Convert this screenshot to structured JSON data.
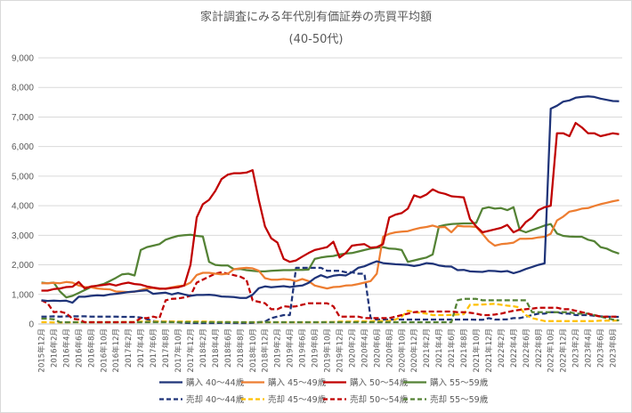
{
  "chart_data": {
    "type": "line",
    "title": "家計調査にみる年代別有価証券の売買平均額",
    "subtitle": "(40-50代)",
    "xlabel": "",
    "ylabel": "",
    "ylim": [
      0,
      9000
    ],
    "yticks": [
      "0",
      "1,000",
      "2,000",
      "3,000",
      "4,000",
      "5,000",
      "6,000",
      "7,000",
      "8,000",
      "9,000"
    ],
    "ytick_values": [
      0,
      1000,
      2000,
      3000,
      4000,
      5000,
      6000,
      7000,
      8000,
      9000
    ],
    "grid": true,
    "legend_position": "bottom",
    "x": [
      "2015年12月",
      "2016年1月",
      "2016年2月",
      "2016年3月",
      "2016年4月",
      "2016年5月",
      "2016年6月",
      "2016年7月",
      "2016年8月",
      "2016年9月",
      "2016年10月",
      "2016年11月",
      "2016年12月",
      "2017年1月",
      "2017年2月",
      "2017年3月",
      "2017年4月",
      "2017年5月",
      "2017年6月",
      "2017年7月",
      "2017年8月",
      "2017年9月",
      "2017年10月",
      "2017年11月",
      "2017年12月",
      "2018年1月",
      "2018年2月",
      "2018年3月",
      "2018年4月",
      "2018年5月",
      "2018年6月",
      "2018年7月",
      "2018年8月",
      "2018年9月",
      "2018年10月",
      "2018年11月",
      "2018年12月",
      "2019年1月",
      "2019年2月",
      "2019年3月",
      "2019年4月",
      "2019年5月",
      "2019年6月",
      "2019年7月",
      "2019年8月",
      "2019年9月",
      "2019年10月",
      "2019年11月",
      "2019年12月",
      "2020年1月",
      "2020年2月",
      "2020年3月",
      "2020年4月",
      "2020年5月",
      "2020年6月",
      "2020年7月",
      "2020年8月",
      "2020年9月",
      "2020年10月",
      "2020年11月",
      "2020年12月",
      "2021年1月",
      "2021年2月",
      "2021年3月",
      "2021年4月",
      "2021年5月",
      "2021年6月",
      "2021年7月",
      "2021年8月",
      "2021年9月",
      "2021年10月",
      "2021年11月",
      "2021年12月",
      "2022年1月",
      "2022年2月",
      "2022年3月",
      "2022年4月",
      "2022年5月",
      "2022年6月",
      "2022年7月",
      "2022年8月",
      "2022年9月",
      "2022年10月",
      "2022年11月",
      "2022年12月",
      "2023年1月",
      "2023年2月",
      "2023年3月",
      "2023年4月",
      "2023年5月",
      "2023年6月",
      "2023年7月",
      "2023年8月",
      "2023年9月"
    ],
    "x_tick_labels": [
      "2015年12月",
      "2016年2月",
      "2016年4月",
      "2016年6月",
      "2016年8月",
      "2016年10月",
      "2016年12月",
      "2017年2月",
      "2017年4月",
      "2017年6月",
      "2017年8月",
      "2017年10月",
      "2017年12月",
      "2018年2月",
      "2018年4月",
      "2018年6月",
      "2018年8月",
      "2018年10月",
      "2018年12月",
      "2019年2月",
      "2019年4月",
      "2019年6月",
      "2019年8月",
      "2019年10月",
      "2019年12月",
      "2020年2月",
      "2020年4月",
      "2020年6月",
      "2020年8月",
      "2020年10月",
      "2020年12月",
      "2021年2月",
      "2021年4月",
      "2021年6月",
      "2021年8月",
      "2021年10月",
      "2021年12月",
      "2022年2月",
      "2022年4月",
      "2022年6月",
      "2022年8月",
      "2022年10月",
      "2022年12月",
      "2023年2月",
      "2023年4月",
      "2023年6月",
      "2023年8月"
    ],
    "series": [
      {
        "name": "購入 40～44歳",
        "color": "#1f3479",
        "dash": false,
        "values": [
          800,
          780,
          790,
          780,
          790,
          720,
          920,
          920,
          950,
          970,
          960,
          1000,
          1020,
          1050,
          1080,
          1100,
          1120,
          1140,
          1020,
          1040,
          1060,
          1000,
          1050,
          1000,
          950,
          980,
          980,
          990,
          970,
          930,
          920,
          910,
          880,
          880,
          990,
          1210,
          1270,
          1240,
          1260,
          1280,
          1250,
          1280,
          1300,
          1390,
          1550,
          1650,
          1570,
          1630,
          1660,
          1640,
          1750,
          1900,
          1950,
          2040,
          2120,
          2060,
          2040,
          2020,
          2010,
          2000,
          1960,
          2000,
          2060,
          2040,
          1980,
          1950,
          1940,
          1820,
          1830,
          1780,
          1770,
          1760,
          1800,
          1790,
          1770,
          1790,
          1720,
          1780,
          1860,
          1930,
          2000,
          2050,
          7280,
          7380,
          7520,
          7560,
          7650,
          7680,
          7700,
          7680,
          7620,
          7580,
          7540,
          7530
        ]
      },
      {
        "name": "購入 45～49歳",
        "color": "#ed7d31",
        "dash": false,
        "values": [
          1380,
          1380,
          1390,
          1380,
          1420,
          1400,
          1300,
          1250,
          1240,
          1200,
          1180,
          1170,
          1100,
          1090,
          1080,
          1090,
          1150,
          1200,
          1220,
          1180,
          1200,
          1240,
          1280,
          1300,
          1400,
          1660,
          1730,
          1730,
          1700,
          1680,
          1700,
          1850,
          1880,
          1900,
          1880,
          1800,
          1550,
          1500,
          1500,
          1520,
          1500,
          1450,
          1520,
          1450,
          1300,
          1250,
          1200,
          1250,
          1260,
          1300,
          1310,
          1350,
          1400,
          1450,
          1700,
          2950,
          3050,
          3100,
          3120,
          3140,
          3200,
          3250,
          3280,
          3330,
          3270,
          3280,
          3100,
          3320,
          3300,
          3300,
          3280,
          3050,
          2800,
          2650,
          2700,
          2720,
          2750,
          2880,
          2880,
          2890,
          2930,
          2950,
          3050,
          3500,
          3630,
          3800,
          3840,
          3900,
          3920,
          3990,
          4050,
          4100,
          4150,
          4190
        ]
      },
      {
        "name": "購入 50～54歳",
        "color": "#c00000",
        "dash": false,
        "values": [
          1130,
          1130,
          1180,
          1200,
          1250,
          1260,
          1420,
          1200,
          1270,
          1290,
          1320,
          1350,
          1300,
          1360,
          1400,
          1350,
          1330,
          1270,
          1230,
          1200,
          1190,
          1220,
          1240,
          1300,
          2000,
          3600,
          4050,
          4200,
          4500,
          4900,
          5050,
          5100,
          5100,
          5120,
          5200,
          4200,
          3300,
          2900,
          2750,
          2200,
          2100,
          2150,
          2280,
          2400,
          2500,
          2550,
          2600,
          2780,
          2250,
          2400,
          2650,
          2680,
          2700,
          2580,
          2600,
          2700,
          3600,
          3700,
          3750,
          3900,
          4350,
          4280,
          4380,
          4550,
          4450,
          4400,
          4320,
          4300,
          4280,
          3550,
          3300,
          3100,
          3150,
          3200,
          3250,
          3350,
          3100,
          3200,
          3450,
          3600,
          3850,
          3950,
          4000,
          6450,
          6450,
          6350,
          6800,
          6650,
          6450,
          6450,
          6350,
          6400,
          6450,
          6420
        ]
      },
      {
        "name": "購入 55～59歳",
        "color": "#548235",
        "dash": false,
        "values": [
          1400,
          1380,
          1400,
          1100,
          900,
          950,
          1050,
          1150,
          1250,
          1300,
          1350,
          1450,
          1560,
          1680,
          1700,
          1640,
          2500,
          2600,
          2650,
          2700,
          2850,
          2920,
          2980,
          3000,
          3020,
          2980,
          2960,
          2100,
          2000,
          1980,
          1980,
          1850,
          1860,
          1820,
          1800,
          1780,
          1780,
          1800,
          1810,
          1820,
          1820,
          1830,
          1830,
          1840,
          2200,
          2250,
          2280,
          2300,
          2350,
          2380,
          2400,
          2450,
          2500,
          2550,
          2580,
          2600,
          2550,
          2540,
          2500,
          2100,
          2150,
          2200,
          2250,
          2350,
          3300,
          3350,
          3380,
          3390,
          3400,
          3400,
          3420,
          3900,
          3950,
          3900,
          3920,
          3850,
          3950,
          3180,
          3100,
          3180,
          3250,
          3330,
          3380,
          3060,
          2980,
          2960,
          2950,
          2950,
          2850,
          2800,
          2600,
          2550,
          2450,
          2380
        ]
      },
      {
        "name": "売却 40～44歳",
        "color": "#1f3479",
        "dash": true,
        "values": [
          250,
          250,
          260,
          250,
          260,
          260,
          260,
          260,
          250,
          250,
          250,
          250,
          250,
          240,
          240,
          240,
          220,
          160,
          100,
          80,
          80,
          80,
          60,
          40,
          30,
          30,
          30,
          30,
          30,
          40,
          40,
          30,
          30,
          30,
          40,
          60,
          80,
          200,
          250,
          300,
          300,
          1900,
          1900,
          1900,
          1900,
          1900,
          1800,
          1800,
          1800,
          1750,
          1750,
          1700,
          1700,
          200,
          150,
          150,
          150,
          150,
          150,
          150,
          150,
          150,
          150,
          150,
          150,
          150,
          150,
          150,
          150,
          150,
          140,
          140,
          200,
          150,
          150,
          160,
          200,
          200,
          250,
          300,
          350,
          350,
          400,
          400,
          350,
          350,
          300,
          300,
          300,
          280,
          260,
          250,
          240,
          240
        ]
      },
      {
        "name": "売却 45～49歳",
        "color": "#ffc000",
        "dash": true,
        "values": [
          60,
          60,
          50,
          50,
          50,
          60,
          60,
          60,
          60,
          60,
          60,
          60,
          60,
          70,
          70,
          70,
          80,
          80,
          80,
          80,
          80,
          80,
          80,
          80,
          80,
          80,
          80,
          80,
          70,
          70,
          70,
          60,
          60,
          60,
          60,
          60,
          60,
          60,
          60,
          60,
          60,
          60,
          60,
          60,
          60,
          60,
          70,
          70,
          80,
          80,
          80,
          90,
          90,
          90,
          100,
          100,
          100,
          150,
          250,
          450,
          400,
          380,
          350,
          300,
          300,
          300,
          310,
          320,
          330,
          650,
          650,
          660,
          670,
          680,
          650,
          620,
          600,
          560,
          300,
          200,
          150,
          100,
          100,
          100,
          100,
          100,
          100,
          100,
          100,
          100,
          110,
          110,
          110,
          120
        ]
      },
      {
        "name": "売却 50～54歳",
        "color": "#c00000",
        "dash": true,
        "values": [
          800,
          700,
          400,
          420,
          360,
          180,
          150,
          60,
          60,
          60,
          60,
          60,
          60,
          60,
          60,
          60,
          200,
          200,
          250,
          200,
          800,
          850,
          860,
          900,
          950,
          1400,
          1500,
          1600,
          1700,
          1750,
          1700,
          1650,
          1600,
          1500,
          800,
          750,
          700,
          500,
          500,
          600,
          580,
          600,
          650,
          700,
          700,
          700,
          700,
          600,
          250,
          250,
          250,
          250,
          200,
          200,
          200,
          200,
          200,
          250,
          300,
          350,
          400,
          420,
          420,
          420,
          420,
          420,
          420,
          400,
          400,
          380,
          350,
          300,
          300,
          320,
          350,
          400,
          450,
          480,
          500,
          520,
          550,
          550,
          550,
          550,
          500,
          500,
          450,
          400,
          350,
          300,
          250,
          250,
          250,
          250
        ]
      },
      {
        "name": "売却 55～59歳",
        "color": "#548235",
        "dash": true,
        "values": [
          180,
          180,
          160,
          60,
          60,
          60,
          60,
          60,
          60,
          60,
          60,
          60,
          60,
          60,
          60,
          60,
          60,
          60,
          60,
          60,
          60,
          60,
          60,
          60,
          60,
          60,
          60,
          60,
          60,
          60,
          60,
          60,
          60,
          60,
          60,
          60,
          60,
          60,
          60,
          60,
          60,
          60,
          60,
          60,
          60,
          60,
          60,
          60,
          60,
          60,
          60,
          60,
          60,
          60,
          60,
          60,
          60,
          60,
          60,
          60,
          60,
          60,
          60,
          60,
          60,
          60,
          60,
          800,
          850,
          850,
          850,
          800,
          800,
          800,
          800,
          800,
          800,
          800,
          800,
          400,
          400,
          400,
          400,
          400,
          400,
          400,
          350,
          350,
          350,
          300,
          250,
          200,
          150,
          120
        ]
      }
    ]
  }
}
